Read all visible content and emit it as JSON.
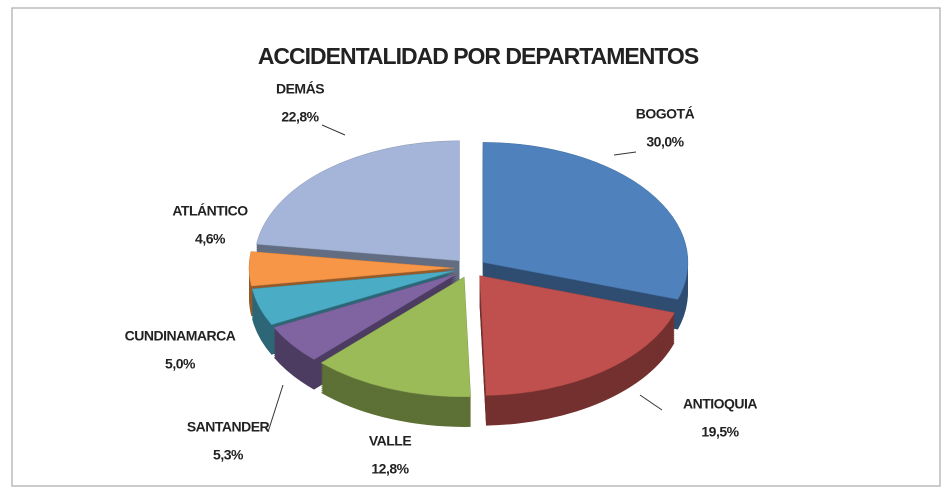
{
  "chart_data": {
    "type": "pie",
    "title": "ACCIDENTALIDAD POR DEPARTAMENTOS",
    "categories": [
      "BOGOTÁ",
      "ANTIOQUIA",
      "VALLE",
      "SANTANDER",
      "CUNDINAMARCA",
      "ATLÁNTICO",
      "DEMÁS"
    ],
    "values": [
      30.0,
      19.5,
      12.8,
      5.3,
      5.0,
      4.6,
      22.8
    ],
    "value_labels": [
      "30,0%",
      "19,5%",
      "12,8%",
      "5,3%",
      "5,0%",
      "4,6%",
      "22,8%"
    ],
    "colors": [
      "#4f81bd",
      "#c0504d",
      "#9bbb59",
      "#8064a2",
      "#4bacc6",
      "#f79646",
      "#a5b5d9"
    ]
  }
}
